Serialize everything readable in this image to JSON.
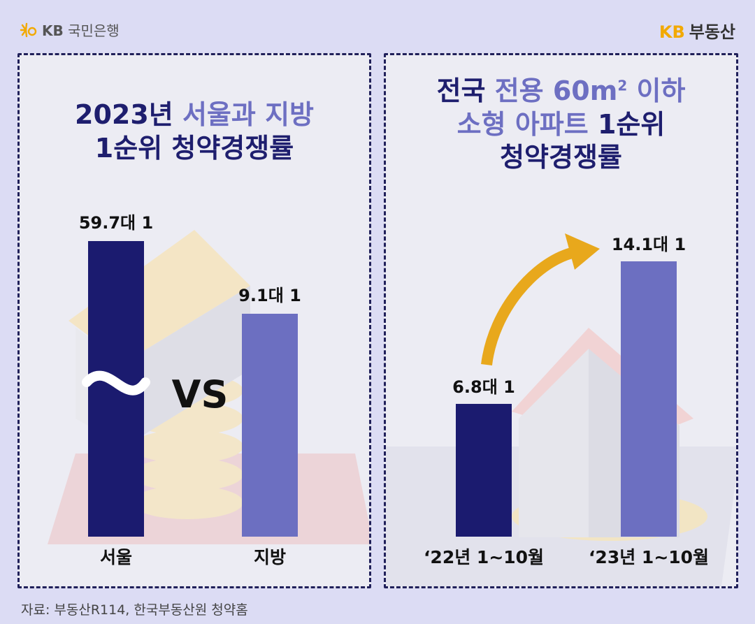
{
  "header": {
    "bank_logo_text": "국민은행",
    "bank_logo_prefix": "KB",
    "brand_prefix": "KB",
    "brand_name": "부동산"
  },
  "left_panel": {
    "title_line1_main": "2023년 ",
    "title_line1_accent": "서울과 지방",
    "title_line2": "1순위 청약경쟁률",
    "vs_label": "VS"
  },
  "right_panel": {
    "title_line1_main": "전국 ",
    "title_line1_accent": "전용 60m",
    "title_line1_sup": "2",
    "title_line1_tail": " 이하",
    "title_line2_accent": "소형 아파트 ",
    "title_line2_main": "1순위",
    "title_line3": "청약경쟁률"
  },
  "colors": {
    "dark_bar": "#1b1b6f",
    "light_bar": "#6c6fc1",
    "arrow": "#e8a81c",
    "brand": "#f2a900"
  },
  "chart_data": [
    {
      "type": "bar",
      "title": "2023년 서울과 지방 1순위 청약경쟁률",
      "categories": [
        "서울",
        "지방"
      ],
      "values": [
        59.7,
        9.1
      ],
      "value_labels": [
        "59.7대 1",
        "9.1대 1"
      ],
      "axis_break": true,
      "colors": [
        "#1b1b6f",
        "#6c6fc1"
      ]
    },
    {
      "type": "bar",
      "title": "전국 전용 60m² 이하 소형 아파트 1순위 청약경쟁률",
      "categories": [
        "‘22년 1~10월",
        "‘23년 1~10월"
      ],
      "values": [
        6.8,
        14.1
      ],
      "value_labels": [
        "6.8대 1",
        "14.1대 1"
      ],
      "ylim": [
        0,
        14.1
      ],
      "colors": [
        "#1b1b6f",
        "#6c6fc1"
      ]
    }
  ],
  "source": "자료: 부동산R114, 한국부동산원 청약홈"
}
